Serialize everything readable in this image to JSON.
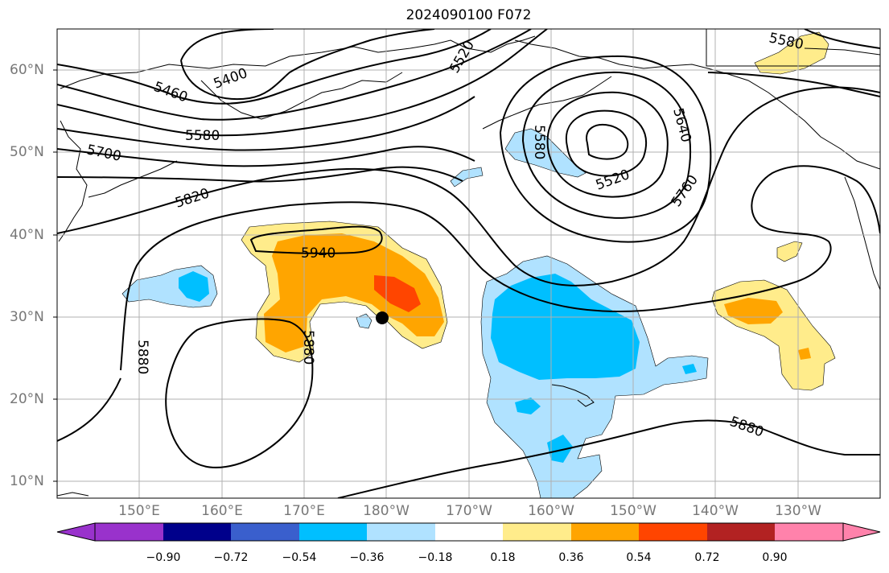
{
  "title": "2024090100 F072",
  "lat_labels": [
    "60°N",
    "50°N",
    "40°N",
    "30°N",
    "20°N",
    "10°N"
  ],
  "lon_labels": [
    "150°E",
    "160°E",
    "170°E",
    "180°W",
    "170°W",
    "160°W",
    "150°W",
    "140°W",
    "130°W"
  ],
  "contour_labels": [
    "5460",
    "5400",
    "5520",
    "5580",
    "5580",
    "5700",
    "5820",
    "5940",
    "5880",
    "5880",
    "5880",
    "5580",
    "5640",
    "5520",
    "5760"
  ],
  "colorbar": {
    "ticks": [
      "−0.90",
      "−0.72",
      "−0.54",
      "−0.36",
      "−0.18",
      "0.18",
      "0.36",
      "0.54",
      "0.72",
      "0.90"
    ],
    "colors": [
      "#9932cc",
      "#00008b",
      "#3a5fcd",
      "#00bfff",
      "#b0e2ff",
      "#ffffff",
      "#ffec8b",
      "#ffa500",
      "#ff4500",
      "#b22222",
      "#ff82ab"
    ]
  },
  "colors": {
    "frame": "#000000",
    "grid": "#b0b0b0",
    "contour": "#000000",
    "axis_label": "#777777"
  }
}
